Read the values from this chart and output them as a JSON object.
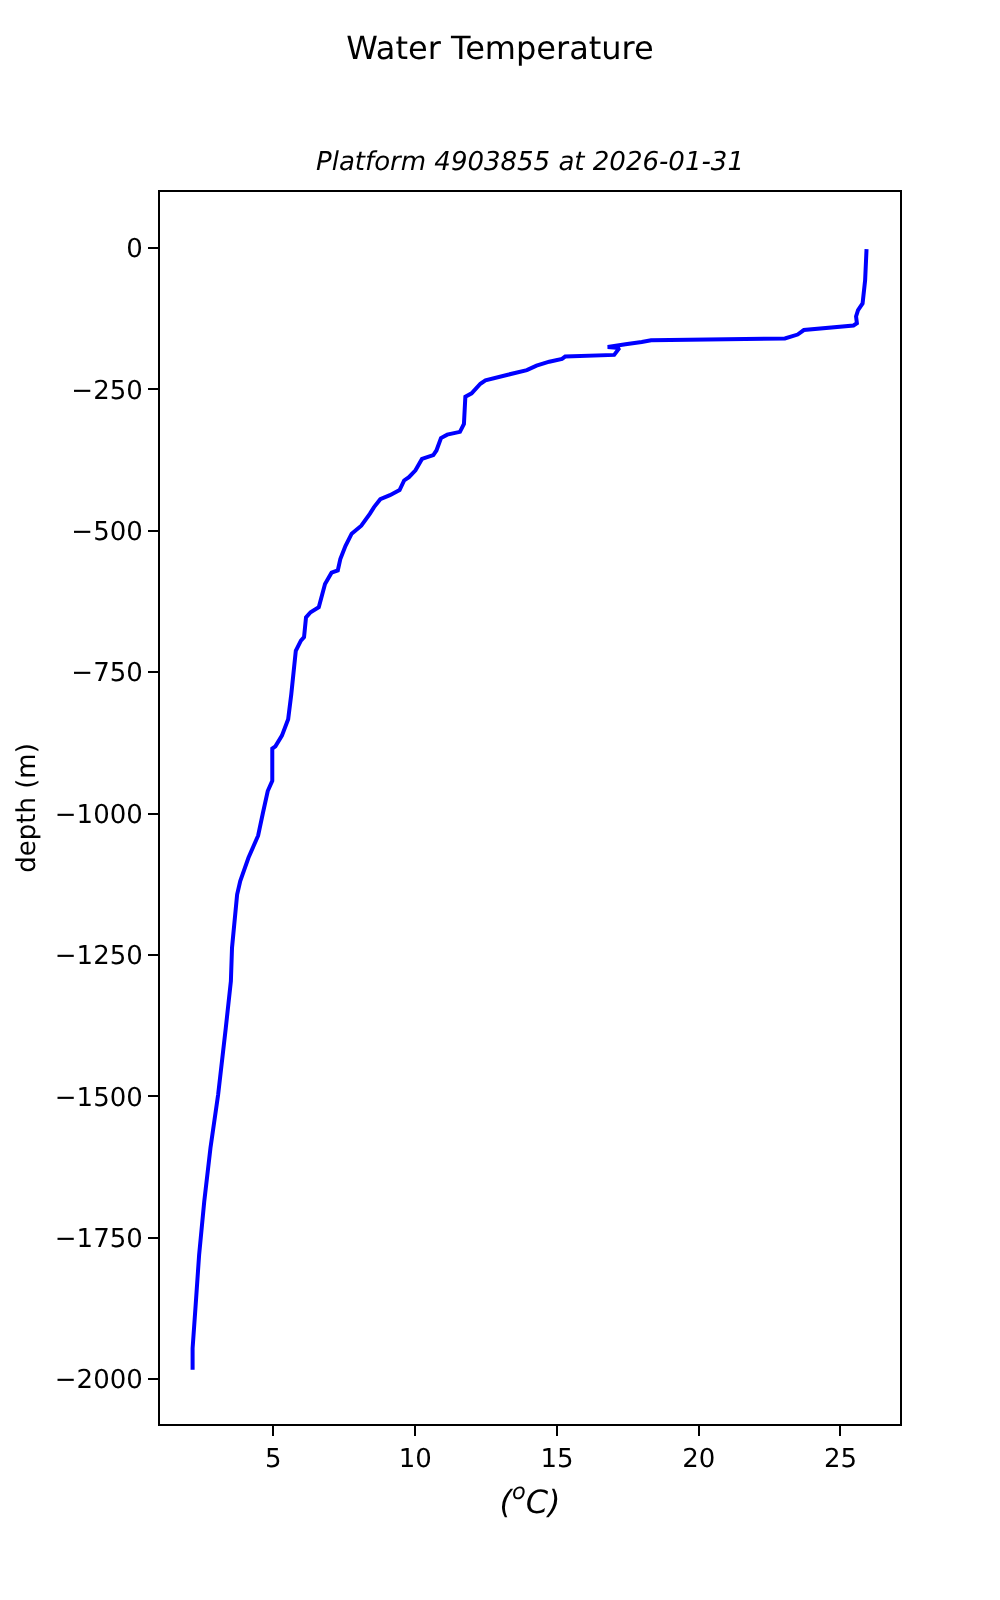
{
  "chart_data": {
    "type": "line",
    "title": "Water Temperature",
    "subtitle": "Platform 4903855 at 2026-01-31",
    "xlabel": "($^{o}$C)",
    "ylabel": "depth (m)",
    "x": [
      25.92,
      25.87,
      25.78,
      25.62,
      25.55,
      25.58,
      25.46,
      23.71,
      23.49,
      23.04,
      18.32,
      17.99,
      17.42,
      16.79,
      17.2,
      17.02,
      15.29,
      15.18,
      14.73,
      14.28,
      13.94,
      13.27,
      12.48,
      12.3,
      11.99,
      11.77,
      11.72,
      11.58,
      11.13,
      10.91,
      10.75,
      10.64,
      10.24,
      10.01,
      9.78,
      9.61,
      9.45,
      9.11,
      8.77,
      8.55,
      8.4,
      8.1,
      7.76,
      7.54,
      7.36,
      7.27,
      7.05,
      6.82,
      6.6,
      6.31,
      6.15,
      6.08,
      5.97,
      5.79,
      5.63,
      5.52,
      5.3,
      5.07,
      4.96,
      4.96,
      4.8,
      4.62,
      4.46,
      4.12,
      3.83,
      3.72,
      3.54,
      3.5,
      3.32,
      3.05,
      2.78,
      2.56,
      2.38,
      2.25,
      2.15,
      2.15
    ],
    "values": [
      -2,
      -57,
      -98,
      -110,
      -121,
      -133,
      -137,
      -145,
      -153,
      -160,
      -163,
      -166,
      -170,
      -175,
      -177,
      -189,
      -192,
      -196,
      -201,
      -208,
      -216,
      -224,
      -234,
      -240,
      -257,
      -263,
      -311,
      -325,
      -330,
      -336,
      -358,
      -366,
      -373,
      -393,
      -405,
      -411,
      -428,
      -437,
      -444,
      -458,
      -470,
      -491,
      -505,
      -527,
      -550,
      -570,
      -574,
      -594,
      -635,
      -644,
      -653,
      -688,
      -694,
      -712,
      -789,
      -833,
      -862,
      -881,
      -885,
      -942,
      -960,
      -1001,
      -1039,
      -1078,
      -1119,
      -1143,
      -1237,
      -1296,
      -1379,
      -1497,
      -1591,
      -1686,
      -1780,
      -1874,
      -1945,
      -1983
    ],
    "color": "#0000ff",
    "xlim": [
      1.0,
      27.1
    ],
    "xticks": [
      5,
      10,
      15,
      20,
      25
    ],
    "ylim": [
      -2079,
      99
    ],
    "yticks": [
      0,
      {
        "value": -250,
        "label": "−250"
      },
      {
        "value": -500,
        "label": "−500"
      },
      {
        "value": -750,
        "label": "−750"
      },
      {
        "value": -1000,
        "label": "−1000"
      },
      {
        "value": -1250,
        "label": "−1250"
      },
      {
        "value": -1500,
        "label": "−1500"
      },
      {
        "value": -1750,
        "label": "−1750"
      },
      {
        "value": -2000,
        "label": "−2000"
      }
    ]
  }
}
